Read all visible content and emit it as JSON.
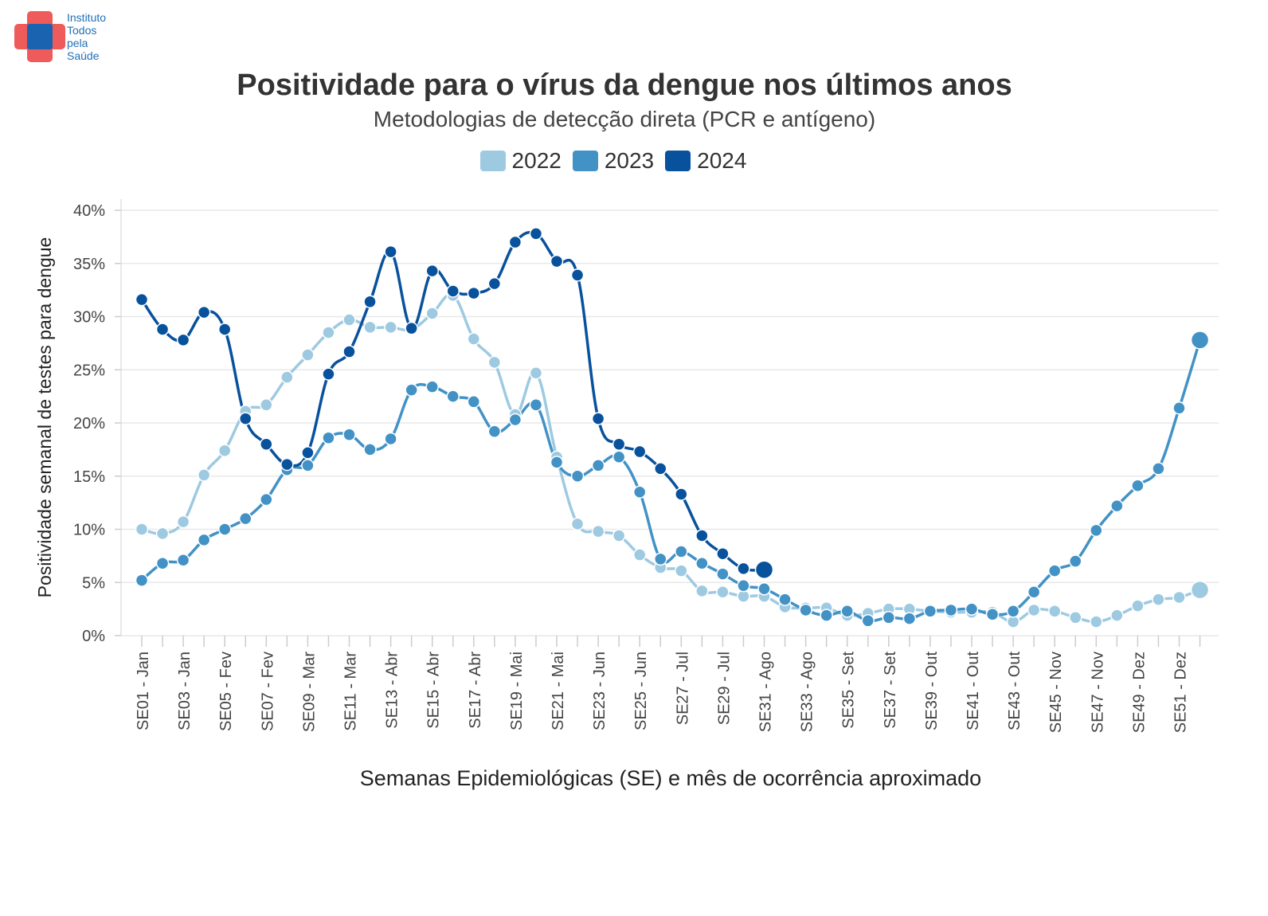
{
  "logo": {
    "text_lines": [
      "Instituto",
      "Todos",
      "pela",
      "Saúde"
    ],
    "colors": {
      "cross": "#ef5a5a",
      "center": "#1a63b0"
    }
  },
  "chart_data": {
    "type": "line",
    "title": "Positividade para o vírus da dengue nos últimos anos",
    "subtitle": "Metodologias de detecção direta (PCR e antígeno)",
    "xlabel": "Semanas Epidemiológicas (SE) e mês de ocorrência aproximado",
    "ylabel": "Positividade semanal de testes para dengue",
    "ylim": [
      0,
      40
    ],
    "y_ticks": [
      "0%",
      "5%",
      "10%",
      "15%",
      "20%",
      "25%",
      "30%",
      "35%",
      "40%"
    ],
    "x_tick_labels": [
      "SE01 - Jan",
      "SE03 - Jan",
      "SE05 - Fev",
      "SE07 - Fev",
      "SE09 - Mar",
      "SE11 - Mar",
      "SE13 - Abr",
      "SE15 - Abr",
      "SE17 - Abr",
      "SE19 - Mai",
      "SE21 - Mai",
      "SE23 - Jun",
      "SE25 - Jun",
      "SE27 - Jul",
      "SE29 - Jul",
      "SE31 - Ago",
      "SE33 - Ago",
      "SE35 - Set",
      "SE37 - Set",
      "SE39 - Out",
      "SE41 - Out",
      "SE43 - Out",
      "SE45 - Nov",
      "SE47 - Nov",
      "SE49 - Dez",
      "SE51 - Dez"
    ],
    "x_weeks": [
      1,
      2,
      3,
      4,
      5,
      6,
      7,
      8,
      9,
      10,
      11,
      12,
      13,
      14,
      15,
      16,
      17,
      18,
      19,
      20,
      21,
      22,
      23,
      24,
      25,
      26,
      27,
      28,
      29,
      30,
      31,
      32,
      33,
      34,
      35,
      36,
      37,
      38,
      39,
      40,
      41,
      42,
      43,
      44,
      45,
      46,
      47,
      48,
      49,
      50,
      51,
      52
    ],
    "grid": true,
    "legend_position": "top",
    "series": [
      {
        "name": "2022",
        "color": "#9ecae1",
        "values": [
          10.0,
          9.6,
          10.7,
          15.1,
          17.4,
          21.1,
          21.7,
          24.3,
          26.4,
          28.5,
          29.7,
          29.0,
          29.0,
          28.8,
          30.3,
          32.0,
          27.9,
          25.7,
          20.8,
          24.7,
          16.8,
          10.5,
          9.8,
          9.4,
          7.6,
          6.4,
          6.1,
          4.2,
          4.1,
          3.7,
          3.7,
          2.7,
          2.6,
          2.6,
          1.9,
          2.1,
          2.5,
          2.5,
          2.3,
          2.2,
          2.2,
          2.2,
          1.3,
          2.4,
          2.3,
          1.7,
          1.3,
          1.9,
          2.8,
          3.4,
          3.6,
          4.3
        ]
      },
      {
        "name": "2023",
        "color": "#4292c6",
        "values": [
          5.2,
          6.8,
          7.1,
          9.0,
          10.0,
          11.0,
          12.8,
          15.6,
          16.0,
          18.6,
          18.9,
          17.5,
          18.5,
          23.1,
          23.4,
          22.5,
          22.0,
          19.2,
          20.3,
          21.7,
          16.3,
          15.0,
          16.0,
          16.8,
          13.5,
          7.2,
          7.9,
          6.8,
          5.8,
          4.7,
          4.4,
          3.4,
          2.4,
          1.9,
          2.3,
          1.4,
          1.7,
          1.6,
          2.3,
          2.4,
          2.5,
          2.0,
          2.3,
          4.1,
          6.1,
          7.0,
          9.9,
          12.2,
          14.1,
          15.7,
          21.4,
          27.8
        ]
      },
      {
        "name": "2024",
        "color": "#08519c",
        "values": [
          31.6,
          28.8,
          27.8,
          30.4,
          28.8,
          20.4,
          18.0,
          16.1,
          17.2,
          24.6,
          26.7,
          31.4,
          36.1,
          28.9,
          34.3,
          32.4,
          32.2,
          33.1,
          37.0,
          37.8,
          35.2,
          33.9,
          20.4,
          18.0,
          17.3,
          15.7,
          13.3,
          9.4,
          7.7,
          6.3,
          6.2
        ]
      }
    ]
  }
}
